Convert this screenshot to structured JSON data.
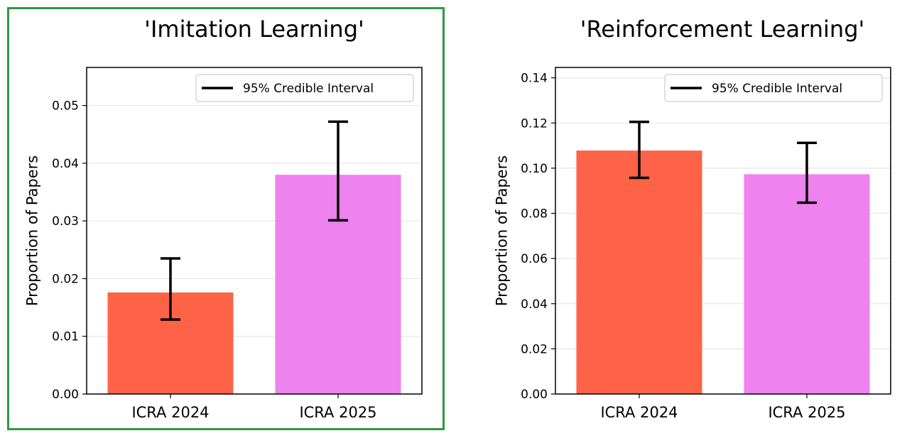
{
  "chart_data": [
    {
      "type": "bar",
      "title": "'Imitation Learning'",
      "ylabel": "Proportion of Papers",
      "xlabel": "",
      "categories": [
        "ICRA 2024",
        "ICRA 2025"
      ],
      "values": [
        0.0176,
        0.038
      ],
      "ci_low": [
        0.0129,
        0.0301
      ],
      "ci_high": [
        0.0235,
        0.0472
      ],
      "colors": [
        "#ff6347",
        "#ee82ee"
      ],
      "ylim": [
        0,
        0.0566
      ],
      "yticks": [
        0.0,
        0.01,
        0.02,
        0.03,
        0.04,
        0.05
      ],
      "ytick_labels": [
        "0.00",
        "0.01",
        "0.02",
        "0.03",
        "0.04",
        "0.05"
      ],
      "legend": {
        "label": "95% Credible Interval",
        "placement": "top-right"
      },
      "grid": "y",
      "highlighted": true
    },
    {
      "type": "bar",
      "title": "'Reinforcement Learning'",
      "ylabel": "Proportion of Papers",
      "xlabel": "",
      "categories": [
        "ICRA 2024",
        "ICRA 2025"
      ],
      "values": [
        0.1078,
        0.0973
      ],
      "ci_low": [
        0.0957,
        0.0847
      ],
      "ci_high": [
        0.1205,
        0.1112
      ],
      "colors": [
        "#ff6347",
        "#ee82ee"
      ],
      "ylim": [
        0,
        0.1446
      ],
      "yticks": [
        0.0,
        0.02,
        0.04,
        0.06,
        0.08,
        0.1,
        0.12,
        0.14
      ],
      "ytick_labels": [
        "0.00",
        "0.02",
        "0.04",
        "0.06",
        "0.08",
        "0.10",
        "0.12",
        "0.14"
      ],
      "legend": {
        "label": "95% Credible Interval",
        "placement": "top-right"
      },
      "grid": "y",
      "highlighted": false
    }
  ]
}
